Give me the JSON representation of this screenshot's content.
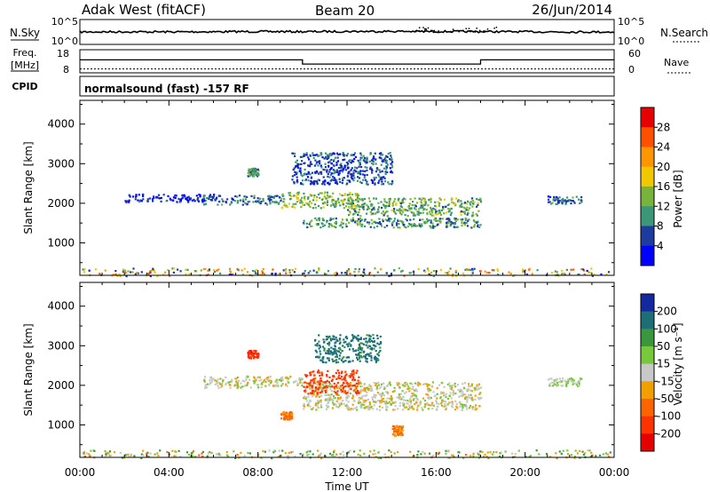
{
  "header": {
    "radar": "Adak West (fitACF)",
    "beam": "Beam 20",
    "date": "26/Jun/2014"
  },
  "noise_panel": {
    "left_label": "N.Sky",
    "right_label": "N.Search",
    "left_ticks": [
      "10^5",
      "10^0"
    ],
    "right_ticks": [
      "10^5",
      "10^0"
    ]
  },
  "freq_panel": {
    "left_label_1": "Freq.",
    "left_label_2": "[MHz]",
    "right_label": "Nave",
    "left_ticks": [
      "18",
      "8"
    ],
    "right_ticks": [
      "60",
      "0"
    ]
  },
  "cpid_panel": {
    "label": "CPID",
    "text": "normalsound (fast) -157 RF"
  },
  "time_axis": {
    "xlabel": "Time UT",
    "ticks": [
      "00:00",
      "04:00",
      "08:00",
      "12:00",
      "16:00",
      "20:00",
      "00:00"
    ]
  },
  "power_colorbar": {
    "label": "Power [dB]",
    "ticks": [
      "28",
      "24",
      "20",
      "16",
      "12",
      "8",
      "4"
    ],
    "colors": [
      "#e60000",
      "#ff5000",
      "#ff9600",
      "#f0c800",
      "#78b43c",
      "#3c9678",
      "#1e3ca0",
      "#0000ff"
    ]
  },
  "velocity_colorbar": {
    "label": "Velocity [m s⁻¹]",
    "ticks": [
      "200",
      "100",
      "50",
      "15",
      "-15",
      "-50",
      "-100",
      "-200"
    ],
    "colors": [
      "#1428a0",
      "#1e6e78",
      "#3c963c",
      "#78c83c",
      "#c8c8c8",
      "#f0a000",
      "#ff6400",
      "#ff3200",
      "#e60000"
    ]
  },
  "chart_data": [
    {
      "type": "line",
      "title": "N.Sky / N.Search",
      "x_unit": "hours UT",
      "xlim": [
        0,
        24
      ],
      "series": [
        {
          "name": "N.Sky",
          "x": [
            0,
            2,
            4,
            6,
            8,
            10,
            12,
            14,
            16,
            18,
            20,
            22,
            24
          ],
          "values": [
            20000,
            22000,
            21000,
            23000,
            26000,
            24000,
            28000,
            30000,
            27000,
            25000,
            23000,
            21000,
            20000
          ]
        }
      ]
    },
    {
      "type": "line",
      "title": "Freq. [MHz] / Nave",
      "x_unit": "hours UT",
      "xlim": [
        0,
        24
      ],
      "left_ylim": [
        8,
        18
      ],
      "right_ylim": [
        0,
        60
      ],
      "series": [
        {
          "name": "Freq.",
          "x": [
            0,
            10,
            10,
            18,
            18,
            24
          ],
          "values": [
            13.6,
            13.6,
            11.8,
            11.8,
            13.6,
            13.6
          ]
        },
        {
          "name": "Nave",
          "x": [
            0,
            24
          ],
          "values": [
            10,
            10
          ]
        }
      ]
    },
    {
      "type": "heatmap",
      "title": "Power [dB]",
      "xlabel": "Time UT",
      "ylabel": "Slant Range [km]",
      "xlim": [
        0,
        24
      ],
      "ylim": [
        180,
        4600
      ],
      "yticks": [
        1000,
        2000,
        3000,
        4000
      ],
      "zlim": [
        0,
        30
      ],
      "regions": [
        {
          "t0": 2.0,
          "t1": 6.0,
          "r0": 2050,
          "r1": 2250,
          "z": 4
        },
        {
          "t0": 5.5,
          "t1": 9.0,
          "r0": 1980,
          "r1": 2220,
          "z": 8
        },
        {
          "t0": 9.0,
          "t1": 12.5,
          "r0": 1900,
          "r1": 2300,
          "z": 14
        },
        {
          "t0": 10.0,
          "t1": 18.0,
          "r0": 1400,
          "r1": 1650,
          "z": 10
        },
        {
          "t0": 12.0,
          "t1": 18.0,
          "r0": 1700,
          "r1": 2150,
          "z": 12
        },
        {
          "t0": 9.5,
          "t1": 14.0,
          "r0": 2500,
          "r1": 3300,
          "z": 6
        },
        {
          "t0": 7.5,
          "t1": 8.0,
          "r0": 2700,
          "r1": 2900,
          "z": 10
        },
        {
          "t0": 21.0,
          "t1": 22.5,
          "r0": 2000,
          "r1": 2200,
          "z": 8
        },
        {
          "t0": 0.0,
          "t1": 24.0,
          "r0": 180,
          "r1": 380,
          "z": 10
        }
      ]
    },
    {
      "type": "heatmap",
      "title": "Velocity [m s⁻¹]",
      "xlabel": "Time UT",
      "ylabel": "Slant Range [km]",
      "xlim": [
        0,
        24
      ],
      "ylim": [
        180,
        4600
      ],
      "yticks": [
        1000,
        2000,
        3000,
        4000
      ],
      "zlim": [
        -200,
        200
      ],
      "regions": [
        {
          "t0": 5.5,
          "t1": 10.0,
          "r0": 1950,
          "r1": 2250,
          "z": 0
        },
        {
          "t0": 10.0,
          "t1": 18.0,
          "r0": 1400,
          "r1": 2100,
          "z": 0
        },
        {
          "t0": 10.0,
          "t1": 12.5,
          "r0": 1800,
          "r1": 2400,
          "z": -120
        },
        {
          "t0": 10.5,
          "t1": 13.5,
          "r0": 2600,
          "r1": 3300,
          "z": 120
        },
        {
          "t0": 7.5,
          "t1": 8.0,
          "r0": 2700,
          "r1": 2900,
          "z": -180
        },
        {
          "t0": 9.0,
          "t1": 9.5,
          "r0": 1150,
          "r1": 1350,
          "z": -60
        },
        {
          "t0": 14.0,
          "t1": 14.5,
          "r0": 750,
          "r1": 1000,
          "z": -50
        },
        {
          "t0": 21.0,
          "t1": 22.5,
          "r0": 2000,
          "r1": 2200,
          "z": 20
        },
        {
          "t0": 0.0,
          "t1": 24.0,
          "r0": 180,
          "r1": 380,
          "z": 40
        }
      ]
    }
  ]
}
